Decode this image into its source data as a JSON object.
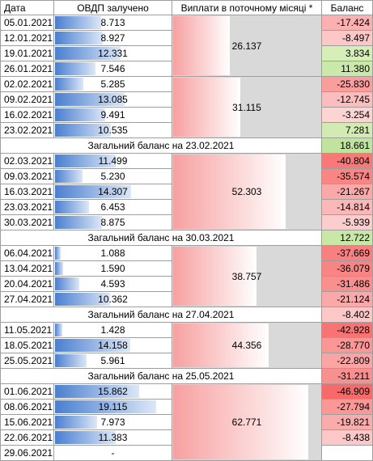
{
  "header": {
    "date": "Дата",
    "ovdp": "ОВДП залучено",
    "payments": "Виплати в поточному місяці *",
    "balance": "Баланс"
  },
  "groups": [
    {
      "rows": [
        {
          "date": "05.01.2021",
          "ovdp": "8.713",
          "balance": "-17.424"
        },
        {
          "date": "12.01.2021",
          "ovdp": "8.927",
          "balance": "-8.497"
        },
        {
          "date": "19.01.2021",
          "ovdp": "12.331",
          "balance": "3.834"
        },
        {
          "date": "26.01.2021",
          "ovdp": "7.546",
          "balance": "11.380"
        }
      ],
      "payment": "26.137"
    },
    {
      "rows": [
        {
          "date": "02.02.2021",
          "ovdp": "5.285",
          "balance": "-25.830"
        },
        {
          "date": "09.02.2021",
          "ovdp": "13.085",
          "balance": "-12.745"
        },
        {
          "date": "16.02.2021",
          "ovdp": "9.491",
          "balance": "-3.254"
        },
        {
          "date": "23.02.2021",
          "ovdp": "10.535",
          "balance": "7.281"
        }
      ],
      "payment": "31.115",
      "summary": {
        "label": "Загальний баланс на 23.02.2021",
        "balance": "18.661"
      }
    },
    {
      "rows": [
        {
          "date": "02.03.2021",
          "ovdp": "11.499",
          "balance": "-40.804"
        },
        {
          "date": "09.03.2021",
          "ovdp": "5.230",
          "balance": "-35.574"
        },
        {
          "date": "16.03.2021",
          "ovdp": "14.307",
          "balance": "-21.267"
        },
        {
          "date": "23.03.2021",
          "ovdp": "6.453",
          "balance": "-14.814"
        },
        {
          "date": "30.03.2021",
          "ovdp": "8.875",
          "balance": "-5.939"
        }
      ],
      "payment": "52.303",
      "summary": {
        "label": "Загальний баланс на 30.03.2021",
        "balance": "12.722"
      }
    },
    {
      "rows": [
        {
          "date": "06.04.2021",
          "ovdp": "1.088",
          "balance": "-37.669"
        },
        {
          "date": "13.04.2021",
          "ovdp": "1.590",
          "balance": "-36.079"
        },
        {
          "date": "20.04.2021",
          "ovdp": "4.593",
          "balance": "-31.486"
        },
        {
          "date": "27.04.2021",
          "ovdp": "10.362",
          "balance": "-21.124"
        }
      ],
      "payment": "38.757",
      "summary": {
        "label": "Загальний баланс на 27.04.2021",
        "balance": "-8.402"
      }
    },
    {
      "rows": [
        {
          "date": "11.05.2021",
          "ovdp": "1.428",
          "balance": "-42.928"
        },
        {
          "date": "18.05.2021",
          "ovdp": "14.158",
          "balance": "-28.770"
        },
        {
          "date": "25.05.2021",
          "ovdp": "5.961",
          "balance": "-22.809"
        }
      ],
      "payment": "44.356",
      "summary": {
        "label": "Загальний баланс на 25.05.2021",
        "balance": "-31.211"
      }
    },
    {
      "rows": [
        {
          "date": "01.06.2021",
          "ovdp": "15.862",
          "balance": "-46.909"
        },
        {
          "date": "08.06.2021",
          "ovdp": "19.115",
          "balance": "-27.794"
        },
        {
          "date": "15.06.2021",
          "ovdp": "7.973",
          "balance": "-19.821"
        },
        {
          "date": "22.06.2021",
          "ovdp": "11.383",
          "balance": "-8.438"
        },
        {
          "date": "29.06.2021",
          "ovdp": "-"
        }
      ],
      "payment": "62.771"
    }
  ]
}
